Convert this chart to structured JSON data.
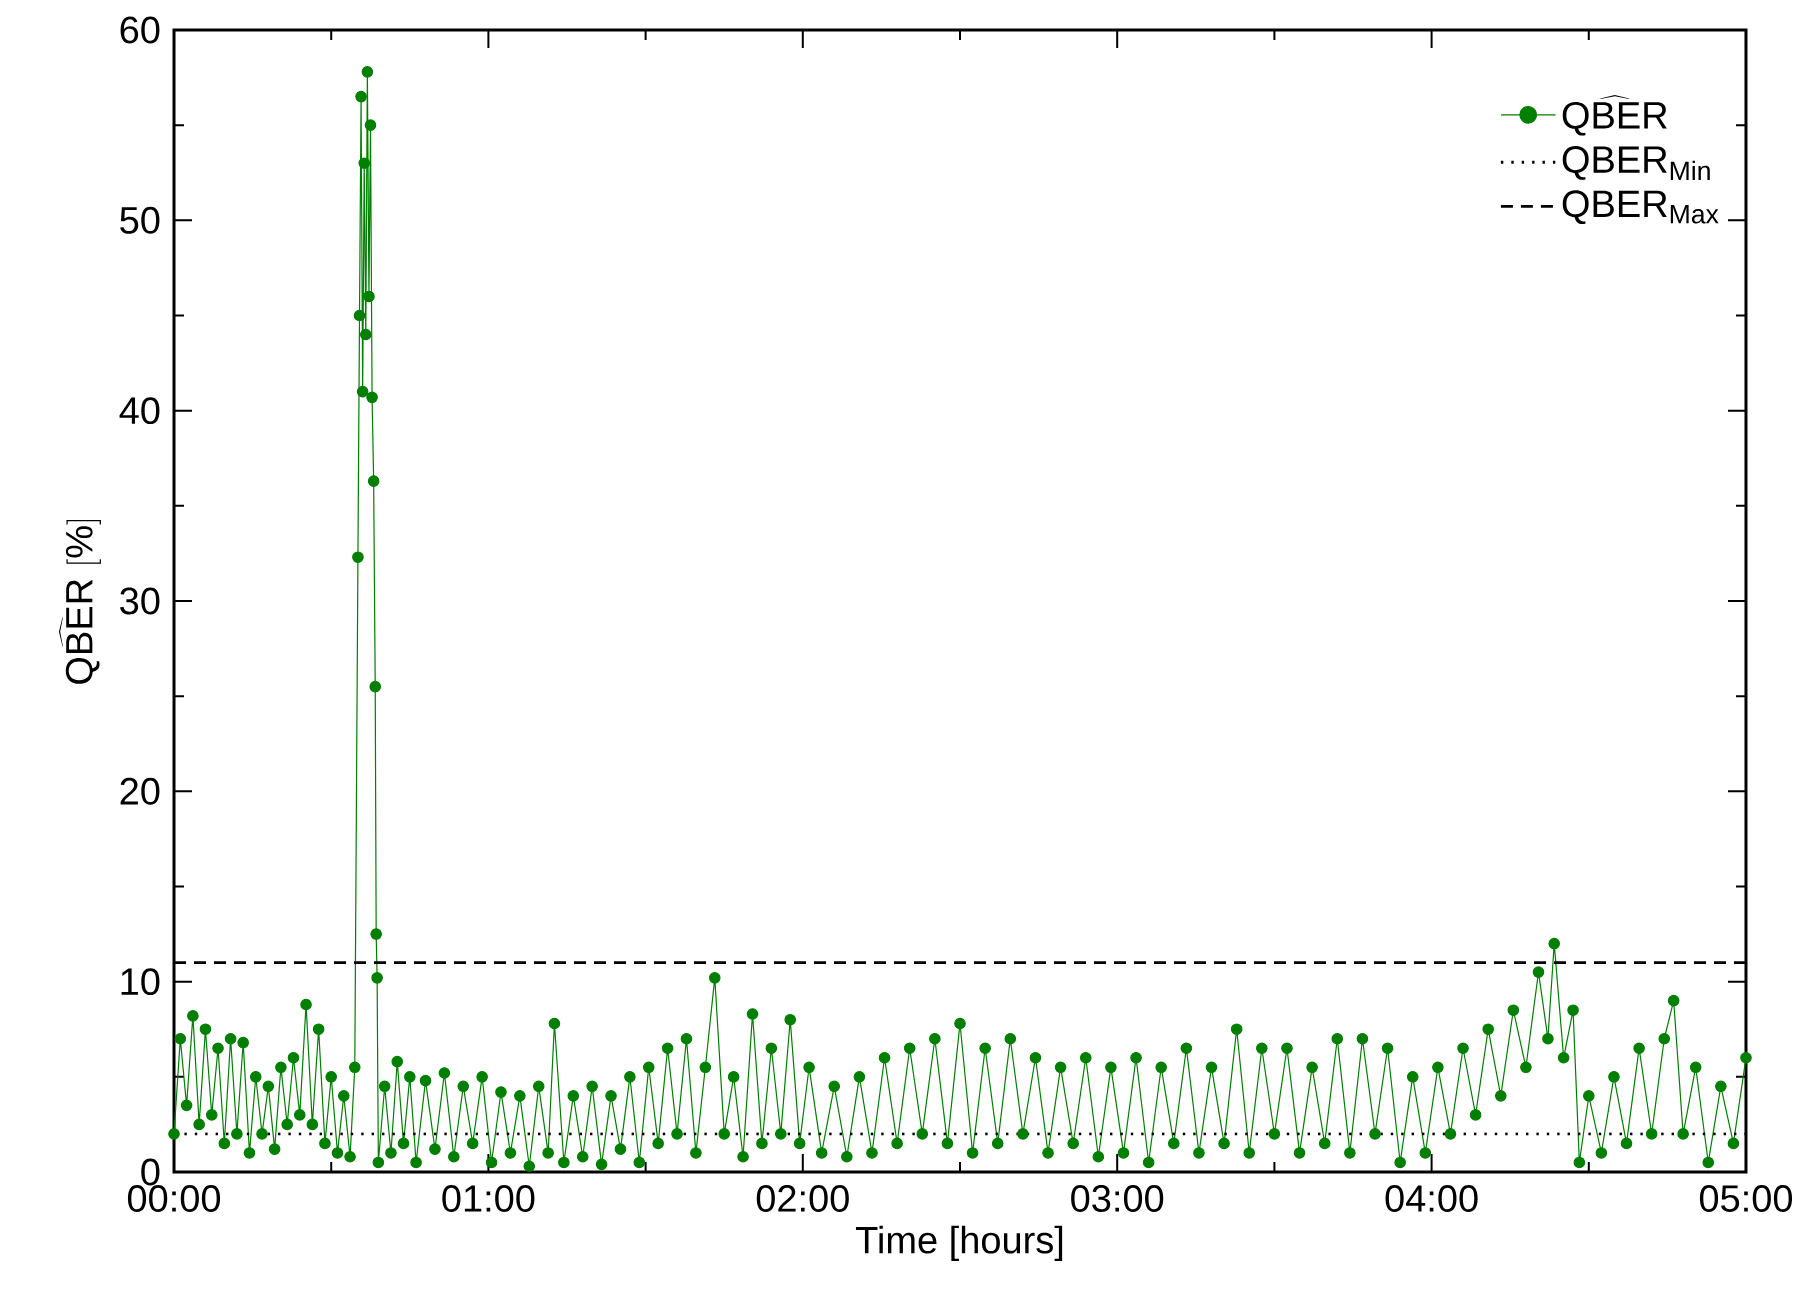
{
  "chart_data": {
    "type": "line",
    "xlabel": "Time [hours]",
    "ylabel": "\\widehat{\\mathrm{QBER}}\\ [\\%]",
    "xlim": [
      0,
      5
    ],
    "ylim": [
      0,
      60
    ],
    "xticks": [
      {
        "value": 0,
        "label": "00:00"
      },
      {
        "value": 0.5,
        "label": null
      },
      {
        "value": 1,
        "label": "01:00"
      },
      {
        "value": 1.5,
        "label": null
      },
      {
        "value": 2,
        "label": "02:00"
      },
      {
        "value": 2.5,
        "label": null
      },
      {
        "value": 3,
        "label": "03:00"
      },
      {
        "value": 3.5,
        "label": null
      },
      {
        "value": 4,
        "label": "04:00"
      },
      {
        "value": 4.5,
        "label": null
      },
      {
        "value": 5,
        "label": "05:00"
      }
    ],
    "yticks": [
      0,
      {
        "value": 5,
        "label": null
      },
      10,
      {
        "value": 15,
        "label": null
      },
      20,
      {
        "value": 25,
        "label": null
      },
      30,
      {
        "value": 35,
        "label": null
      },
      40,
      {
        "value": 45,
        "label": null
      },
      50,
      {
        "value": 55,
        "label": null
      },
      60
    ],
    "grid": false,
    "legend": "top right",
    "marker": "circle",
    "line_style": "solid",
    "series": [
      {
        "name": "\\widehat{\\mathrm{QBER}}",
        "color": "#007f00",
        "x": [
          0.0,
          0.02,
          0.04,
          0.06,
          0.08,
          0.1,
          0.12,
          0.14,
          0.16,
          0.18,
          0.2,
          0.22,
          0.24,
          0.26,
          0.28,
          0.3,
          0.32,
          0.34,
          0.36,
          0.38,
          0.4,
          0.42,
          0.44,
          0.46,
          0.48,
          0.5,
          0.52,
          0.54,
          0.56,
          0.575,
          0.585,
          0.59,
          0.595,
          0.6,
          0.605,
          0.61,
          0.615,
          0.62,
          0.625,
          0.63,
          0.635,
          0.64,
          0.643,
          0.646,
          0.65,
          0.67,
          0.69,
          0.71,
          0.73,
          0.75,
          0.77,
          0.8,
          0.83,
          0.86,
          0.89,
          0.92,
          0.95,
          0.98,
          1.01,
          1.04,
          1.07,
          1.1,
          1.13,
          1.16,
          1.19,
          1.21,
          1.24,
          1.27,
          1.3,
          1.33,
          1.36,
          1.39,
          1.42,
          1.45,
          1.48,
          1.51,
          1.54,
          1.57,
          1.6,
          1.63,
          1.66,
          1.69,
          1.72,
          1.75,
          1.78,
          1.81,
          1.84,
          1.87,
          1.9,
          1.93,
          1.96,
          1.99,
          2.02,
          2.06,
          2.1,
          2.14,
          2.18,
          2.22,
          2.26,
          2.3,
          2.34,
          2.38,
          2.42,
          2.46,
          2.5,
          2.54,
          2.58,
          2.62,
          2.66,
          2.7,
          2.74,
          2.78,
          2.82,
          2.86,
          2.9,
          2.94,
          2.98,
          3.02,
          3.06,
          3.1,
          3.14,
          3.18,
          3.22,
          3.26,
          3.3,
          3.34,
          3.38,
          3.42,
          3.46,
          3.5,
          3.54,
          3.58,
          3.62,
          3.66,
          3.7,
          3.74,
          3.78,
          3.82,
          3.86,
          3.9,
          3.94,
          3.98,
          4.02,
          4.06,
          4.1,
          4.14,
          4.18,
          4.22,
          4.26,
          4.3,
          4.34,
          4.37,
          4.39,
          4.42,
          4.45,
          4.47,
          4.5,
          4.54,
          4.58,
          4.62,
          4.66,
          4.7,
          4.74,
          4.77,
          4.8,
          4.84,
          4.88,
          4.92,
          4.96,
          5.0
        ],
        "values": [
          2.0,
          7.0,
          3.5,
          8.2,
          2.5,
          7.5,
          3.0,
          6.5,
          1.5,
          7.0,
          2.0,
          6.8,
          1.0,
          5.0,
          2.0,
          4.5,
          1.2,
          5.5,
          2.5,
          6.0,
          3.0,
          8.8,
          2.5,
          7.5,
          1.5,
          5.0,
          1.0,
          4.0,
          0.8,
          5.5,
          32.3,
          45,
          56.5,
          41,
          53,
          44,
          57.8,
          46,
          55,
          40.7,
          36.3,
          25.5,
          12.5,
          10.2,
          0.5,
          4.5,
          1.0,
          5.8,
          1.5,
          5.0,
          0.5,
          4.8,
          1.2,
          5.2,
          0.8,
          4.5,
          1.5,
          5.0,
          0.5,
          4.2,
          1.0,
          4.0,
          0.3,
          4.5,
          1.0,
          7.8,
          0.5,
          4.0,
          0.8,
          4.5,
          0.4,
          4.0,
          1.2,
          5.0,
          0.5,
          5.5,
          1.5,
          6.5,
          2.0,
          7.0,
          1.0,
          5.5,
          10.2,
          2.0,
          5.0,
          0.8,
          8.3,
          1.5,
          6.5,
          2.0,
          8.0,
          1.5,
          5.5,
          1.0,
          4.5,
          0.8,
          5.0,
          1.0,
          6.0,
          1.5,
          6.5,
          2.0,
          7.0,
          1.5,
          7.8,
          1.0,
          6.5,
          1.5,
          7.0,
          2.0,
          6.0,
          1.0,
          5.5,
          1.5,
          6.0,
          0.8,
          5.5,
          1.0,
          6.0,
          0.5,
          5.5,
          1.5,
          6.5,
          1.0,
          5.5,
          1.5,
          7.5,
          1.0,
          6.5,
          2.0,
          6.5,
          1.0,
          5.5,
          1.5,
          7.0,
          1.0,
          7.0,
          2.0,
          6.5,
          0.5,
          5.0,
          1.0,
          5.5,
          2.0,
          6.5,
          3.0,
          7.5,
          4.0,
          8.5,
          5.5,
          10.5,
          7.0,
          12.0,
          6.0,
          8.5,
          0.5,
          4.0,
          1.0,
          5.0,
          1.5,
          6.5,
          2.0,
          7.0,
          9.0,
          2.0,
          5.5,
          0.5,
          4.5,
          1.5,
          6.0
        ]
      }
    ],
    "ref_lines": [
      {
        "axis": "y",
        "value": 2,
        "label": "QBER$_{Min}$",
        "color": "#000000",
        "line_style": "dotted"
      },
      {
        "axis": "y",
        "value": 11,
        "label": "QBER$_{Max}$",
        "color": "#000000",
        "line_style": "dashed"
      }
    ]
  }
}
